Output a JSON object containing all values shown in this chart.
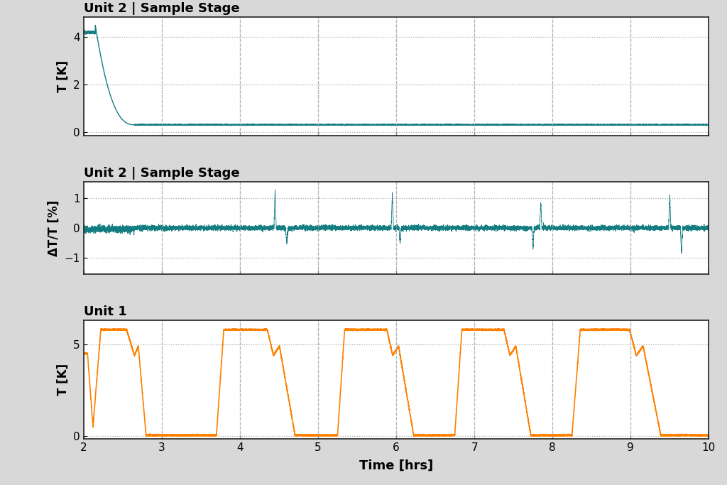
{
  "title1": "Unit 2 | Sample Stage",
  "title2": "Unit 2 | Sample Stage",
  "title3": "Unit 1",
  "ylabel1": "T [K]",
  "ylabel2": "ΔT/T [%]",
  "ylabel3": "T [K]",
  "xlabel": "Time [hrs]",
  "xlim": [
    2,
    10
  ],
  "xticks": [
    2,
    3,
    4,
    5,
    6,
    7,
    8,
    9,
    10
  ],
  "yticks1": [
    0,
    2,
    4
  ],
  "yticks2": [
    -1,
    0,
    1
  ],
  "yticks3": [
    0,
    5
  ],
  "teal_color": "#147D82",
  "orange_color": "#FF8000",
  "bg_color": "#D8D8D8",
  "plot_bg_color": "#FFFFFF",
  "grid_color": "#AAAAAA",
  "title_fontsize": 13,
  "label_fontsize": 12,
  "tick_fontsize": 11
}
